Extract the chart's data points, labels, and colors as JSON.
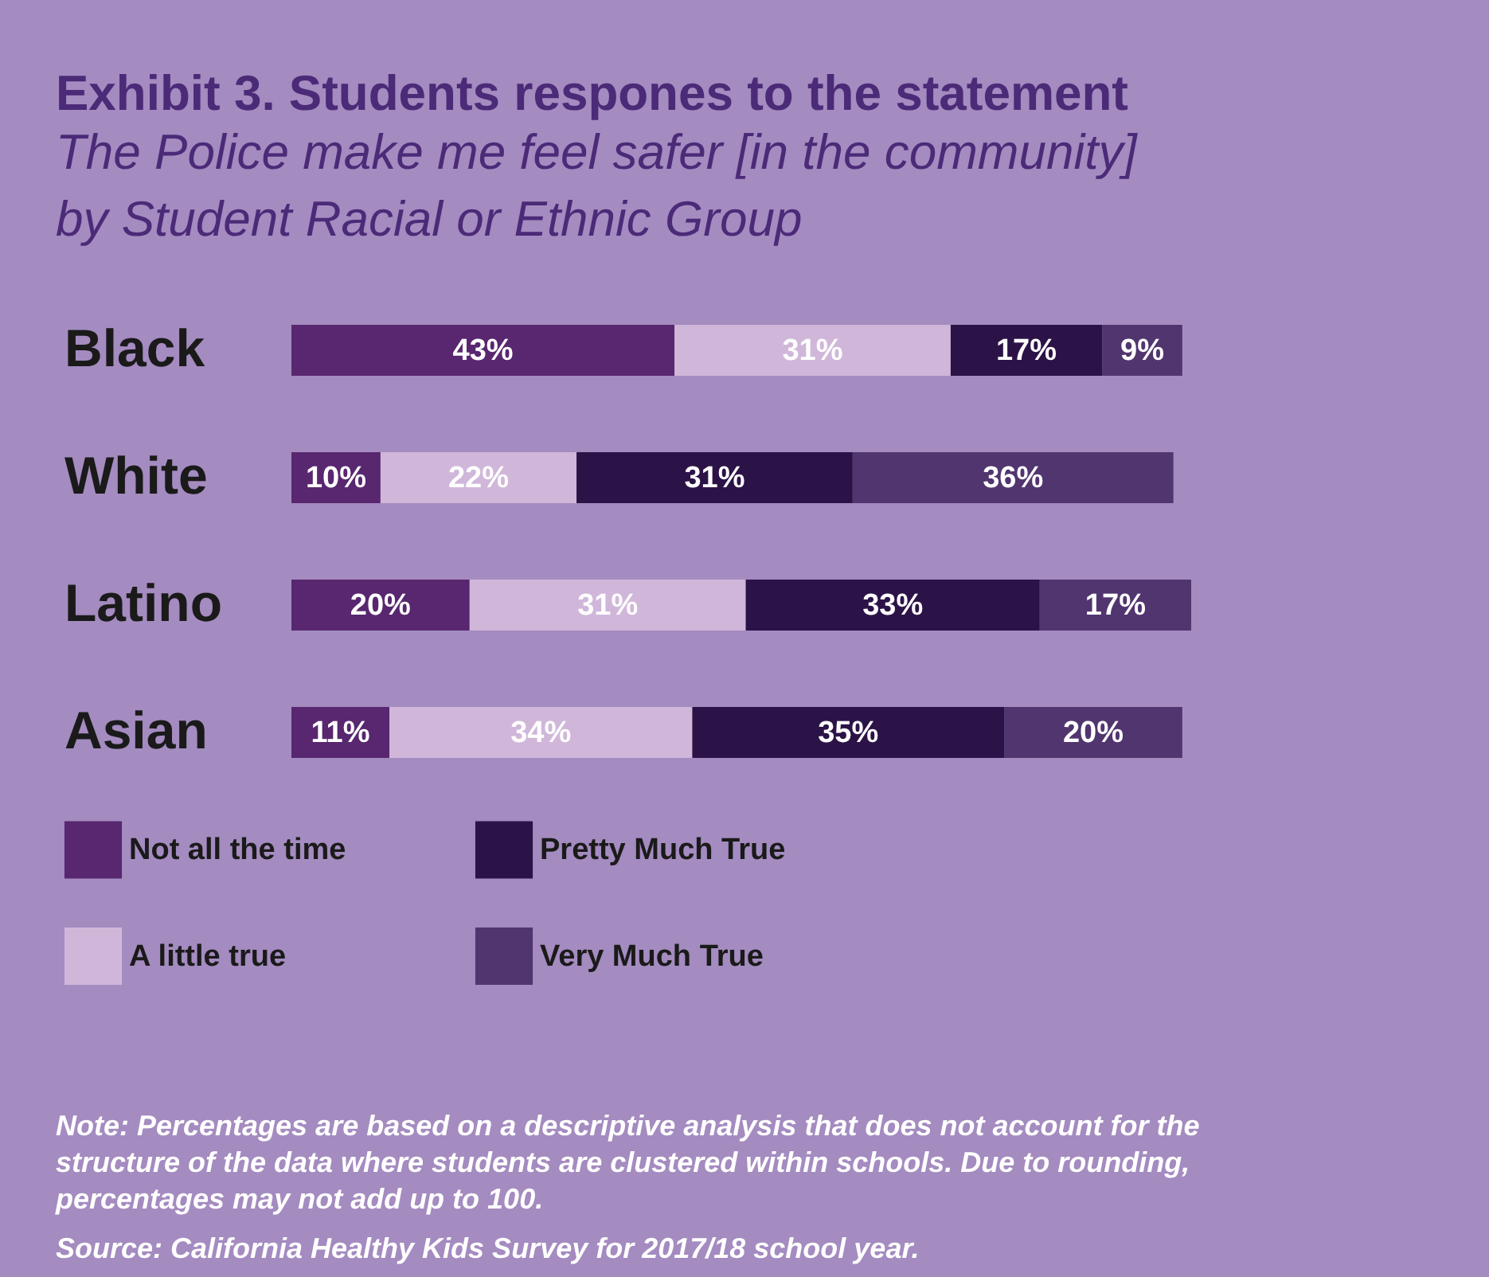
{
  "chart_data": {
    "type": "bar",
    "orientation": "horizontal",
    "stacked": true,
    "title": "Exhibit 3. Students respones to the statement",
    "subtitle": [
      "The Police make me feel safer [in the community]",
      "by Student Racial or Ethnic Group"
    ],
    "categories": [
      "Black",
      "White",
      "Latino",
      "Asian"
    ],
    "series": [
      {
        "name": "Not all the time",
        "color": "#58276f",
        "values": [
          43,
          10,
          20,
          11
        ],
        "value_labels": [
          "43%",
          "10%",
          "20%",
          "11%"
        ]
      },
      {
        "name": "A little true",
        "color": "#d0b7da",
        "values": [
          31,
          22,
          31,
          34
        ],
        "value_labels": [
          "31%",
          "22%",
          "31%",
          "34%"
        ]
      },
      {
        "name": "Pretty Much True",
        "color": "#2c1347",
        "values": [
          17,
          31,
          33,
          35
        ],
        "value_labels": [
          "17%",
          "31%",
          "33%",
          "35%"
        ]
      },
      {
        "name": "Very Much True",
        "color": "#51356f",
        "values": [
          9,
          36,
          17,
          20
        ],
        "value_labels": [
          "9%",
          "36%",
          "17%",
          "20%"
        ]
      }
    ],
    "legend": "bottom left",
    "annotations": [
      "Note: Percentages are based on a descriptive analysis that does not account for the",
      "structure of the data where students are clustered within schools. Due to rounding,",
      "percentages may not add up to 100.",
      "Source: California Healthy Kids Survey for 2017/18 school year."
    ]
  }
}
